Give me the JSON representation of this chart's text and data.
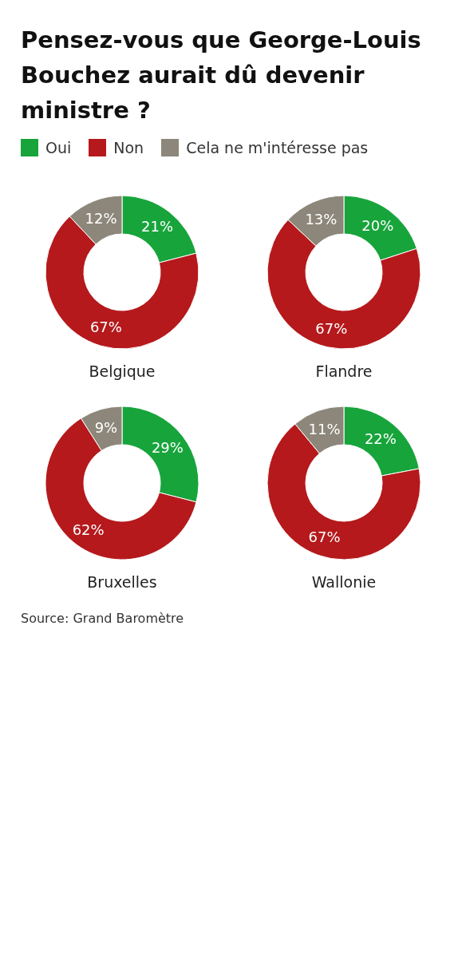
{
  "chart_data": [
    {
      "type": "donut",
      "title": "Belgique",
      "categories": [
        "Oui",
        "Non",
        "Cela ne m'intéresse pas"
      ],
      "values": [
        21,
        67,
        12
      ],
      "value_labels": [
        "21%",
        "67%",
        "12%"
      ],
      "colors": [
        "#17a43b",
        "#b5191c",
        "#8c877a"
      ],
      "legend": "top",
      "annotations": [
        "Pensez-vous que George-Louis Bouchez aurait dû devenir ministre ?"
      ]
    },
    {
      "type": "donut",
      "title": "Flandre",
      "values": [
        20,
        67,
        13
      ],
      "value_labels": [
        "20%",
        "67%",
        "13%"
      ],
      "colors": [
        "#17a43b",
        "#b5191c",
        "#8c877a"
      ]
    },
    {
      "type": "donut",
      "title": "Bruxelles",
      "values": [
        29,
        62,
        9
      ],
      "value_labels": [
        "29%",
        "62%",
        "9%"
      ],
      "colors": [
        "#17a43b",
        "#b5191c",
        "#8c877a"
      ]
    },
    {
      "type": "donut",
      "title": "Wallonie",
      "values": [
        22,
        67,
        11
      ],
      "value_labels": [
        "22%",
        "67%",
        "11%"
      ],
      "colors": [
        "#17a43b",
        "#b5191c",
        "#8c877a"
      ],
      "annotations": [
        "Source: Grand Baromètre"
      ]
    }
  ]
}
